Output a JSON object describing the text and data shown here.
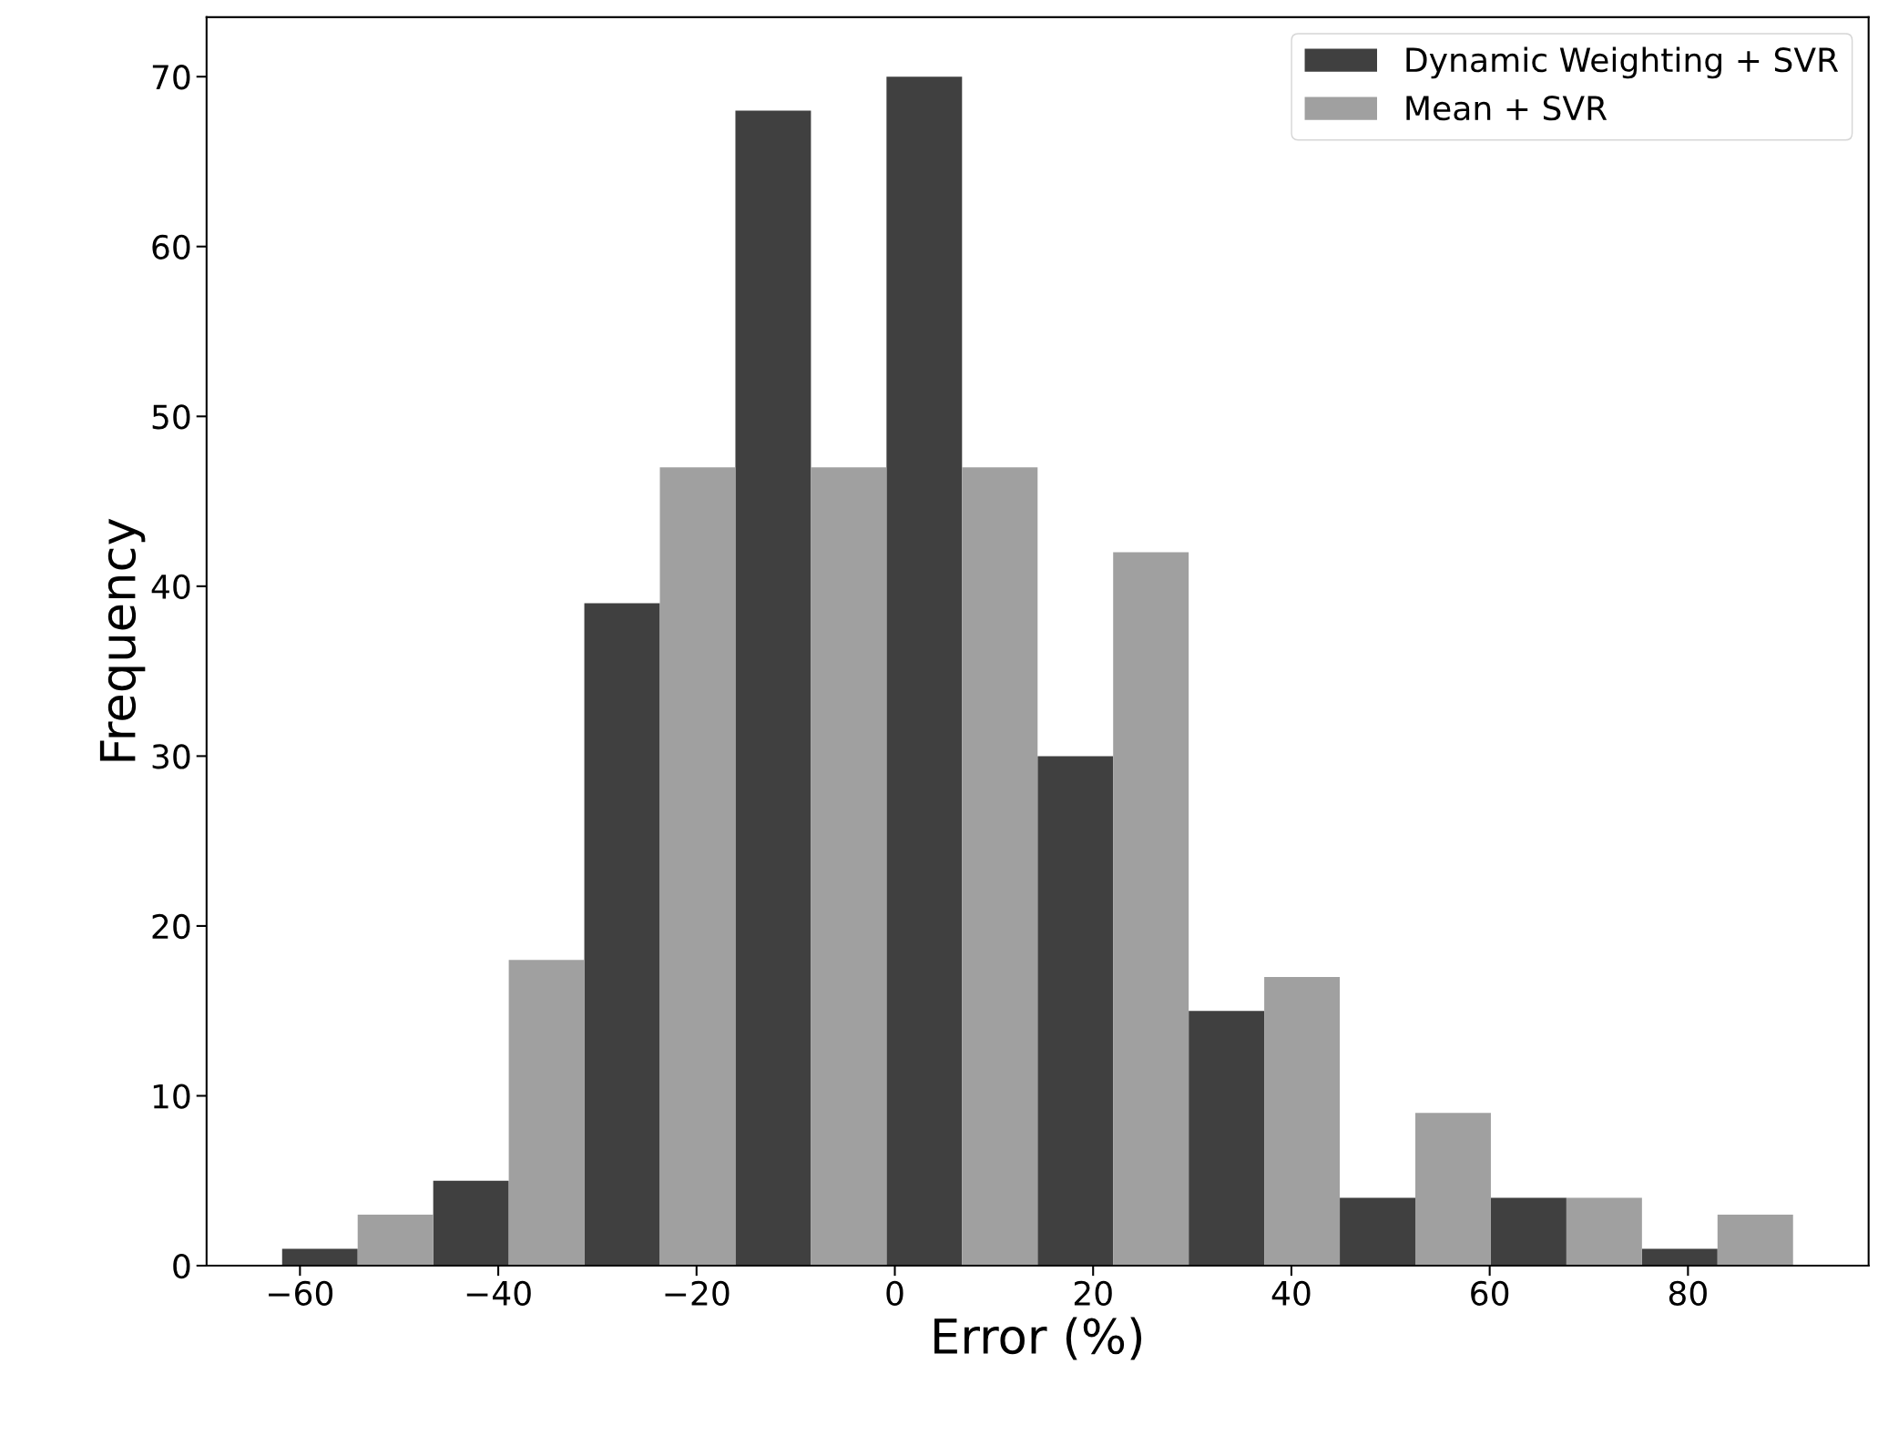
{
  "chart_data": {
    "type": "histogram",
    "xlabel": "Error (%)",
    "ylabel": "Frequency",
    "bins": [
      -61.8,
      -46.56,
      -31.32,
      -16.08,
      -0.84,
      14.4,
      29.64,
      44.88,
      60.12,
      75.36,
      90.6
    ],
    "series": [
      {
        "name": "Dynamic Weighting + SVR",
        "color": "#404040",
        "values": [
          1,
          5,
          39,
          68,
          70,
          30,
          15,
          4,
          4,
          1
        ]
      },
      {
        "name": "Mean + SVR",
        "color": "#a0a0a0",
        "values": [
          3,
          18,
          47,
          47,
          47,
          42,
          17,
          9,
          4,
          3
        ]
      }
    ],
    "xlim": [
      -69.42,
      98.22
    ],
    "ylim": [
      0,
      73.5
    ],
    "xticks": [
      {
        "value": -60,
        "label": "−60"
      },
      {
        "value": -40,
        "label": "−40"
      },
      {
        "value": -20,
        "label": "−20"
      },
      0,
      20,
      40,
      60,
      80
    ],
    "yticks": [
      0,
      10,
      20,
      30,
      40,
      50,
      60,
      70
    ],
    "legend": "top right",
    "grid": false
  }
}
